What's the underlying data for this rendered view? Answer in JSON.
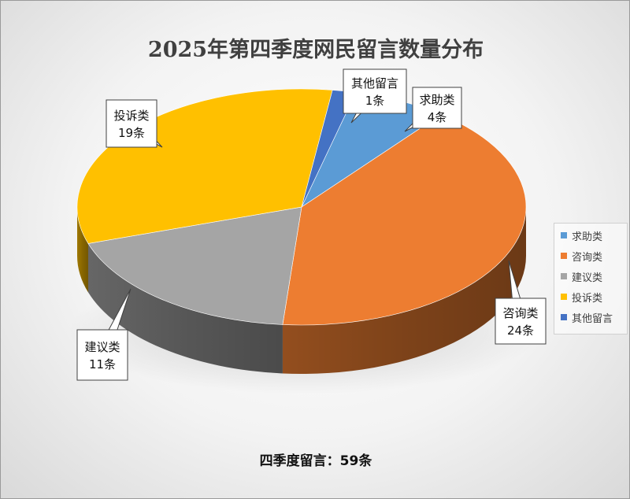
{
  "chart_data": {
    "type": "pie",
    "title": "2025年第四季度网民留言数量分布",
    "slices": [
      {
        "label": "求助类",
        "value": 4,
        "data_label": "4条",
        "color": "#5B9BD5"
      },
      {
        "label": "咨询类",
        "value": 24,
        "data_label": "24条",
        "color": "#ED7D31"
      },
      {
        "label": "建议类",
        "value": 11,
        "data_label": "11条",
        "color": "#A5A5A5"
      },
      {
        "label": "投诉类",
        "value": 19,
        "data_label": "19条",
        "color": "#FFC000"
      },
      {
        "label": "其他留言",
        "value": 1,
        "data_label": "1条",
        "color": "#4472C4"
      }
    ],
    "legend_position": "right",
    "style": "3d-pie"
  },
  "footer_note": "四季度留言：59条"
}
